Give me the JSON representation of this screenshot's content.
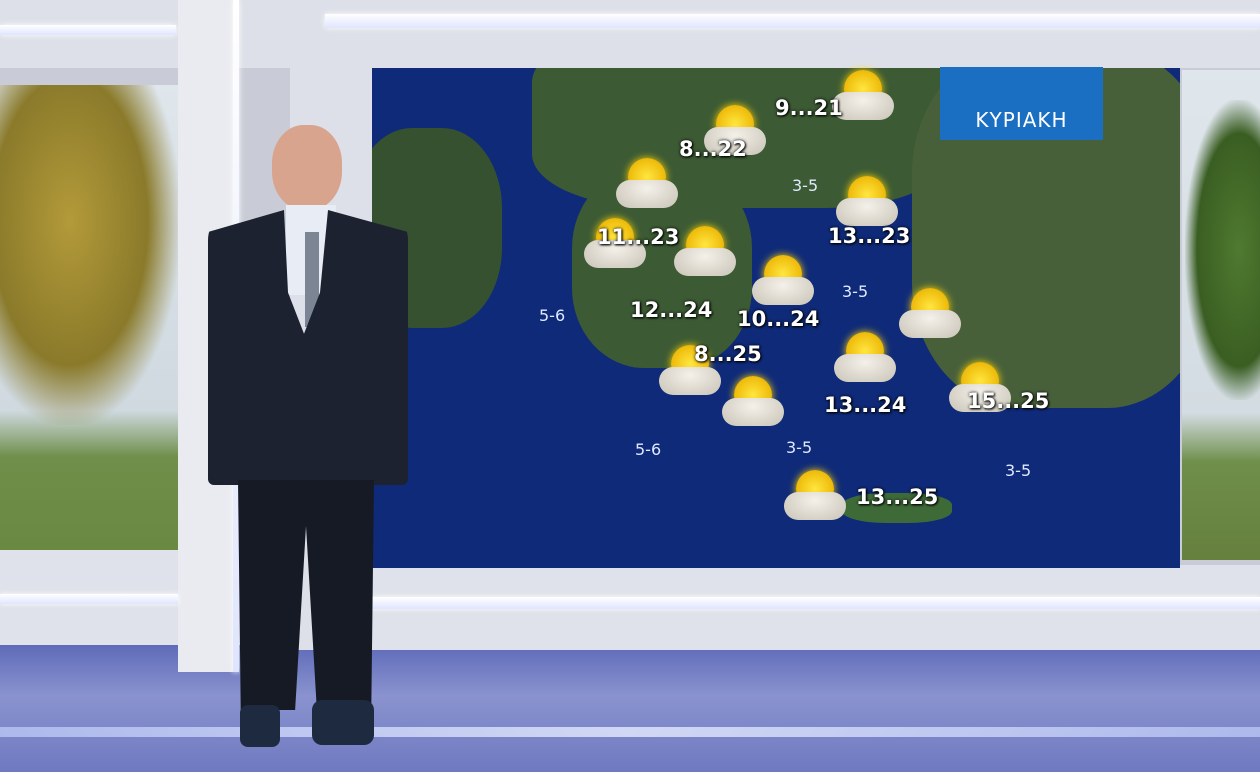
{
  "map": {
    "day_label": "ΚΥΡΙΑΚΗ",
    "temperatures": [
      "9...21",
      "8...22",
      "13...23",
      "11...23",
      "12...24",
      "10...24",
      "8...25",
      "13...24",
      "15...25",
      "13...25"
    ],
    "winds": [
      "3-5",
      "5-6",
      "3-5",
      "5-6",
      "3-5",
      "3-5"
    ],
    "icon": "partly-sunny-icon"
  }
}
